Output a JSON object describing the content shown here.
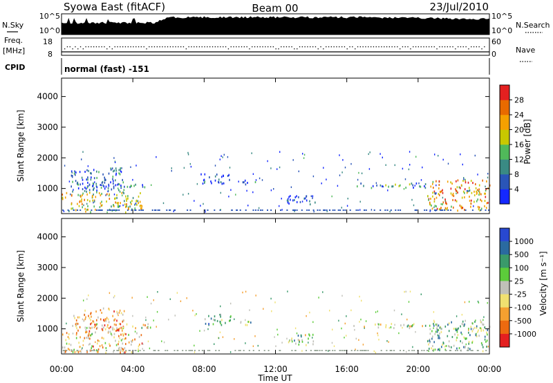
{
  "header": {
    "station": "Syowa East (fitACF)",
    "beam": "Beam 00",
    "date": "23/Jul/2010"
  },
  "top_panels": {
    "nsky_label": "N.Sky",
    "nsky_ticks": [
      "10^5",
      "10^0"
    ],
    "nsearch_label": "N.Search",
    "nsearch_ticks": [
      "10^5",
      "10^0"
    ],
    "freq_label_1": "Freq.",
    "freq_label_2": "[MHz]",
    "freq_ticks": [
      "18",
      "8"
    ],
    "nave_label": "Nave",
    "nave_ticks": [
      "60",
      "0"
    ],
    "cpid_label": "CPID",
    "cpid_value": "normal (fast) -151"
  },
  "chart_data": [
    {
      "type": "heatmap",
      "name": "power",
      "ylabel": "Slant Range [km]",
      "yticks": [
        "1000",
        "2000",
        "3000",
        "4000"
      ],
      "ylim": [
        180,
        4600
      ],
      "xlim": [
        0,
        24
      ],
      "colorbar_label": "Power [dB]",
      "colorbar_ticks": [
        "4",
        "8",
        "12",
        "16",
        "20",
        "24",
        "28"
      ],
      "colorbar_colors": [
        "#1428ff",
        "#2a55b8",
        "#3a8a84",
        "#50b95a",
        "#c8c800",
        "#f5a000",
        "#e86a00",
        "#e42020"
      ],
      "clusters": [
        {
          "t0": 0.0,
          "t1": 4.5,
          "r0": 250,
          "r1": 900,
          "level": 0.55
        },
        {
          "t0": 0.5,
          "t1": 3.5,
          "r0": 900,
          "r1": 1700,
          "level": 0.25
        },
        {
          "t0": 0.8,
          "t1": 5.0,
          "r0": 1050,
          "r1": 1200,
          "level": 0.2
        },
        {
          "t0": 7.8,
          "t1": 9.5,
          "r0": 1150,
          "r1": 1500,
          "level": 0.15
        },
        {
          "t0": 10.0,
          "t1": 11.0,
          "r0": 1150,
          "r1": 1300,
          "level": 0.15
        },
        {
          "t0": 12.6,
          "t1": 14.3,
          "r0": 500,
          "r1": 850,
          "level": 0.1
        },
        {
          "t0": 16.3,
          "t1": 20.5,
          "r0": 1050,
          "r1": 1200,
          "level": 0.3
        },
        {
          "t0": 20.5,
          "t1": 24.0,
          "r0": 300,
          "r1": 1300,
          "level": 0.7
        }
      ]
    },
    {
      "type": "heatmap",
      "name": "velocity",
      "ylabel": "Slant Range [km]",
      "yticks": [
        "1000",
        "2000",
        "3000",
        "4000"
      ],
      "ylim": [
        180,
        4600
      ],
      "xlim": [
        0,
        24
      ],
      "xticks": [
        "00:00",
        "04:00",
        "08:00",
        "12:00",
        "16:00",
        "20:00",
        "00:00"
      ],
      "xlabel": "Time UT",
      "colorbar_label": "Velocity [m s⁻¹]",
      "colorbar_ticks": [
        "1000",
        "500",
        "100",
        "25",
        "-25",
        "-100",
        "-500",
        "-1000"
      ],
      "colorbar_colors": [
        "#2848d0",
        "#2a6aa0",
        "#3a9a6a",
        "#5ccc3a",
        "#c0c0b8",
        "#f0e070",
        "#f5a030",
        "#ec6a10",
        "#e42020"
      ],
      "clusters": [
        {
          "t0": 0.0,
          "t1": 4.5,
          "r0": 250,
          "r1": 900,
          "level": 0.35
        },
        {
          "t0": 0.5,
          "t1": 3.5,
          "r0": 900,
          "r1": 1700,
          "level": 0.3
        },
        {
          "t0": 0.8,
          "t1": 5.0,
          "r0": 1050,
          "r1": 1200,
          "level": 0.45
        },
        {
          "t0": 7.8,
          "t1": 9.5,
          "r0": 1150,
          "r1": 1500,
          "level": 0.65
        },
        {
          "t0": 10.0,
          "t1": 11.0,
          "r0": 1150,
          "r1": 1300,
          "level": 0.6
        },
        {
          "t0": 12.6,
          "t1": 14.3,
          "r0": 500,
          "r1": 850,
          "level": 0.55
        },
        {
          "t0": 16.3,
          "t1": 20.5,
          "r0": 1050,
          "r1": 1200,
          "level": 0.5
        },
        {
          "t0": 20.5,
          "t1": 24.0,
          "r0": 300,
          "r1": 1300,
          "level": 0.6
        }
      ]
    }
  ]
}
